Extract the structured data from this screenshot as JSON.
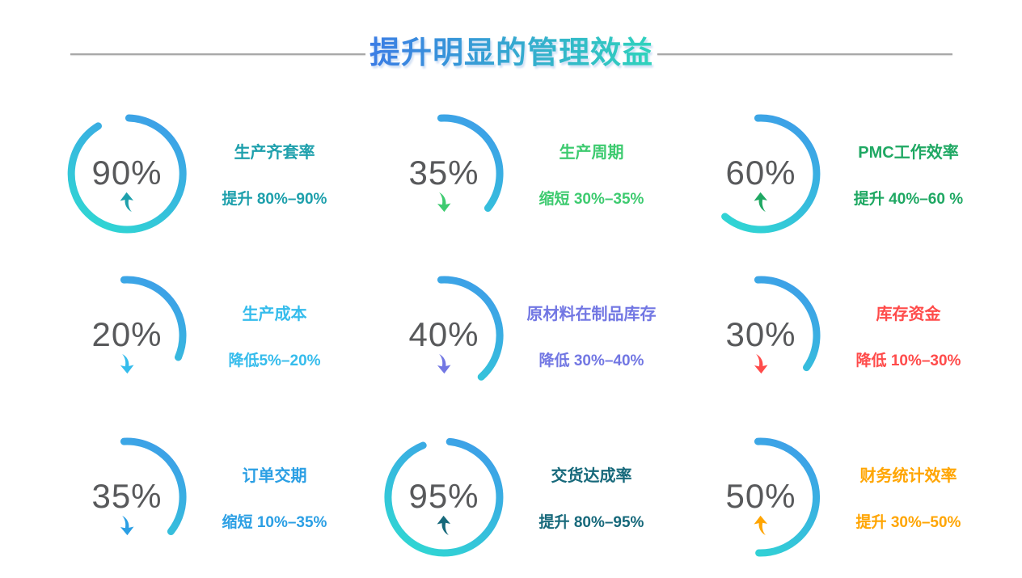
{
  "header": {
    "title": "提升明显的管理效益",
    "title_gradient": [
      "#3B7CE5",
      "#2FD3BC"
    ],
    "divider_color": "#A8A8A8"
  },
  "chart_data": {
    "type": "gauge",
    "title": "提升明显的管理效益",
    "ring_gradient": [
      "#3E9CE9",
      "#2FD9D2"
    ],
    "percent_color": "#58595B",
    "items": [
      {
        "percent": "90%",
        "value": 90,
        "direction": "up",
        "label": "生产齐套率",
        "description": "提升 80%–90%",
        "accent": "#1EA0AC",
        "arc": {
          "start_deg": 2,
          "end_deg": 329
        }
      },
      {
        "percent": "35%",
        "value": 35,
        "direction": "down",
        "label": "生产周期",
        "description": "缩短 30%–35%",
        "accent": "#3ECB70",
        "arc": {
          "start_deg": -3,
          "end_deg": 128
        }
      },
      {
        "percent": "60%",
        "value": 60,
        "direction": "up",
        "label": "PMC工作效率",
        "description": "提升 40%–60 %",
        "accent": "#1FA863",
        "arc": {
          "start_deg": -3,
          "end_deg": 220
        }
      },
      {
        "percent": "20%",
        "value": 20,
        "direction": "down",
        "label": "生产成本",
        "description": "降低5%–20%",
        "accent": "#35BCEC",
        "arc": {
          "start_deg": -3,
          "end_deg": 113
        }
      },
      {
        "percent": "40%",
        "value": 40,
        "direction": "down",
        "label": "原材料在制品库存",
        "description": "降低 30%–40%",
        "accent": "#7277E3",
        "arc": {
          "start_deg": -3,
          "end_deg": 138
        }
      },
      {
        "percent": "30%",
        "value": 30,
        "direction": "down",
        "label": "库存资金",
        "description": "降低 10%–30%",
        "accent": "#FF4B4A",
        "arc": {
          "start_deg": -3,
          "end_deg": 125
        }
      },
      {
        "percent": "35%",
        "value": 35,
        "direction": "down",
        "label": "订单交期",
        "description": "缩短 10%–35%",
        "accent": "#2B9FE4",
        "arc": {
          "start_deg": -3,
          "end_deg": 128
        }
      },
      {
        "percent": "95%",
        "value": 95,
        "direction": "up",
        "label": "交货达成率",
        "description": "提升 80%–95%",
        "accent": "#17697B",
        "arc": {
          "start_deg": 6,
          "end_deg": 338
        }
      },
      {
        "percent": "50%",
        "value": 50,
        "direction": "up",
        "label": "财务统计效率",
        "description": "提升 30%–50%",
        "accent": "#FFA502",
        "arc": {
          "start_deg": -3,
          "end_deg": 182
        }
      }
    ]
  }
}
